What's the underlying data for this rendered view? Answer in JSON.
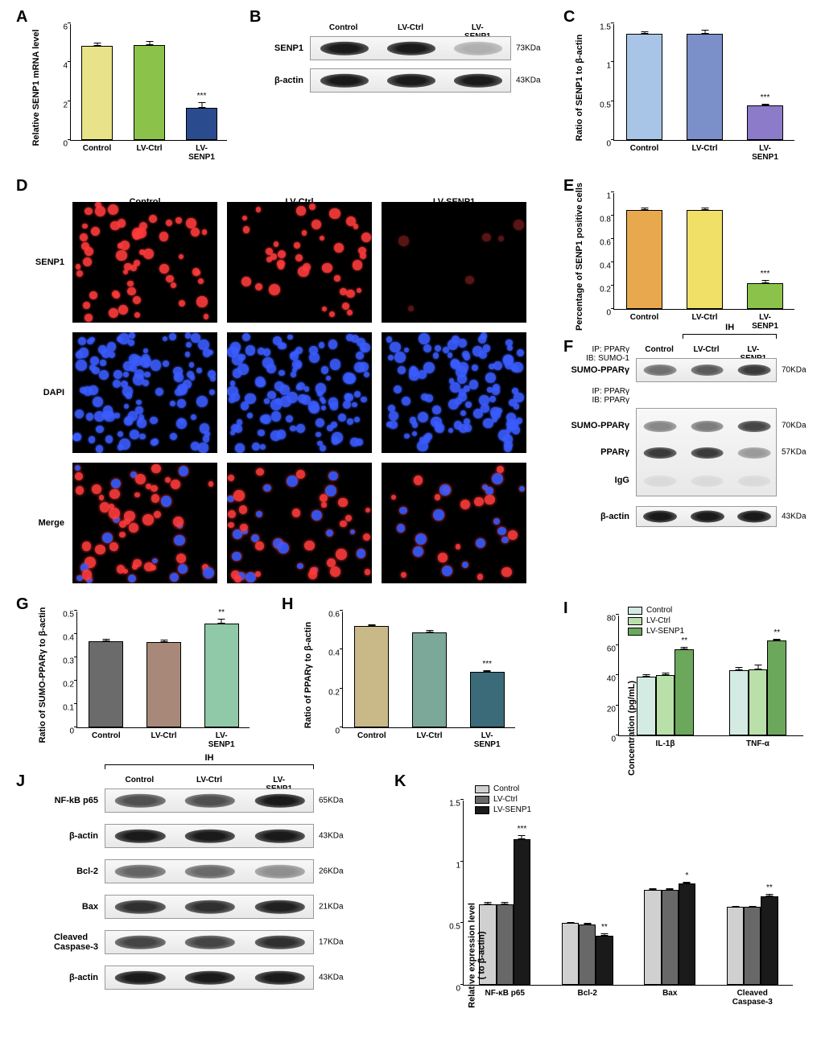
{
  "groups": [
    "Control",
    "LV-Ctrl",
    "LV-SENP1"
  ],
  "panelA": {
    "ylabel": "Relative SENP1 mRNA level",
    "ylim": [
      0,
      6
    ],
    "ytick_step": 2,
    "bars": [
      {
        "label": "Control",
        "value": 4.85,
        "err": 0.15,
        "color": "#e8e388"
      },
      {
        "label": "LV-Ctrl",
        "value": 4.9,
        "err": 0.2,
        "color": "#8bc34a"
      },
      {
        "label": "LV-SENP1",
        "value": 1.65,
        "err": 0.3,
        "color": "#2a4b8d",
        "sig": "***"
      }
    ]
  },
  "panelB": {
    "headers": [
      "Control",
      "LV-Ctrl",
      "LV-SENP1"
    ],
    "rows": [
      {
        "label": "SENP1",
        "kda": "73KDa",
        "intensities": [
          0.95,
          1.0,
          0.25
        ]
      },
      {
        "label": "β-actin",
        "kda": "43KDa",
        "intensities": [
          1.0,
          1.0,
          1.0
        ]
      }
    ]
  },
  "panelC": {
    "ylabel": "Ratio of SENP1 to β-actin",
    "ylim": [
      0,
      1.5
    ],
    "ytick_step": 0.5,
    "bars": [
      {
        "label": "Control",
        "value": 1.37,
        "err": 0.03,
        "color": "#a8c5e8"
      },
      {
        "label": "LV-Ctrl",
        "value": 1.37,
        "err": 0.05,
        "color": "#7b8fc9"
      },
      {
        "label": "LV-SENP1",
        "value": 0.44,
        "err": 0.03,
        "color": "#8b7bc9",
        "sig": "***"
      }
    ]
  },
  "panelD": {
    "row_labels": [
      "SENP1",
      "DAPI",
      "Merge"
    ],
    "col_labels": [
      "Control",
      "LV-Ctrl",
      "LV-SENP1"
    ],
    "densities": [
      [
        1.0,
        0.7,
        0.1
      ],
      [
        1.0,
        1.0,
        1.0
      ],
      [
        1.0,
        0.85,
        0.55
      ]
    ],
    "colors": [
      "#ff3b3b",
      "#3b5cff",
      "#ff3b8f"
    ]
  },
  "panelE": {
    "ylabel": "Percentage of SENP1 positive cells",
    "ylim": [
      0,
      1.0
    ],
    "ytick_step": 0.2,
    "bars": [
      {
        "label": "Control",
        "value": 0.85,
        "err": 0.02,
        "color": "#e8a94e"
      },
      {
        "label": "LV-Ctrl",
        "value": 0.85,
        "err": 0.02,
        "color": "#f0e068"
      },
      {
        "label": "LV-SENP1",
        "value": 0.22,
        "err": 0.03,
        "color": "#8bc34a",
        "sig": "***"
      }
    ]
  },
  "panelF": {
    "ih_label": "IH",
    "headers": [
      "Control",
      "LV-Ctrl",
      "LV-SENP1"
    ],
    "top_labels": [
      "IP: PPARγ",
      "IB: SUMO-1"
    ],
    "mid_labels": [
      "IP: PPARγ",
      "IB: PPARγ"
    ],
    "rows": [
      {
        "label": "SUMO-PPARγ",
        "kda": "70KDa",
        "intensities": [
          0.6,
          0.7,
          0.85
        ],
        "h": 28
      },
      {
        "label": "SUMO-PPARγ",
        "kda": "70KDa",
        "intensities": [
          0.5,
          0.55,
          0.8
        ],
        "h": 0
      },
      {
        "label": "PPARγ",
        "kda": "57KDa",
        "intensities": [
          0.85,
          0.85,
          0.4
        ],
        "h": 0
      },
      {
        "label": "IgG",
        "kda": "",
        "intensities": [
          0.07,
          0.07,
          0.07
        ],
        "h": 0
      },
      {
        "label": "β-actin",
        "kda": "43KDa",
        "intensities": [
          1.0,
          1.0,
          1.0
        ],
        "h": 24
      }
    ]
  },
  "panelG": {
    "ylabel": "Ratio of SUMO-PPARγ to β-actin",
    "ylim": [
      0,
      0.5
    ],
    "ytick_step": 0.1,
    "bars": [
      {
        "label": "Control",
        "value": 0.37,
        "err": 0.01,
        "color": "#6b6b6b"
      },
      {
        "label": "LV-Ctrl",
        "value": 0.365,
        "err": 0.01,
        "color": "#a88878"
      },
      {
        "label": "LV-SENP1",
        "value": 0.445,
        "err": 0.02,
        "color": "#8fc9a8",
        "sig": "**"
      }
    ]
  },
  "panelH": {
    "ylabel": "Ratio of PPARγ to β-actin",
    "ylim": [
      0,
      0.6
    ],
    "ytick_step": 0.2,
    "bars": [
      {
        "label": "Control",
        "value": 0.52,
        "err": 0.01,
        "color": "#c9b888"
      },
      {
        "label": "LV-Ctrl",
        "value": 0.49,
        "err": 0.01,
        "color": "#7ba898"
      },
      {
        "label": "LV-SENP1",
        "value": 0.285,
        "err": 0.01,
        "color": "#3b6b78",
        "sig": "***"
      }
    ]
  },
  "panelI": {
    "ylabel": "Concentration (pg/mL)",
    "ylim": [
      0,
      80
    ],
    "ytick_step": 20,
    "legend": [
      {
        "label": "Control",
        "color": "#d4ebe4"
      },
      {
        "label": "LV-Ctrl",
        "color": "#b8e0a8"
      },
      {
        "label": "LV-SENP1",
        "color": "#6ba85b"
      }
    ],
    "groups": [
      {
        "label": "IL-1β",
        "values": [
          39,
          40,
          57
        ],
        "err": [
          1.5,
          1.8,
          1.5
        ],
        "sig": [
          "",
          "",
          "**"
        ]
      },
      {
        "label": "TNF-α",
        "values": [
          43,
          44,
          63
        ],
        "err": [
          2.5,
          3,
          1
        ],
        "sig": [
          "",
          "",
          "**"
        ]
      }
    ]
  },
  "panelJ": {
    "ih_label": "IH",
    "headers": [
      "Control",
      "LV-Ctrl",
      "LV-SENP1"
    ],
    "rows": [
      {
        "label": "NF-kB p65",
        "kda": "65KDa",
        "intensities": [
          0.7,
          0.7,
          0.95
        ]
      },
      {
        "label": "β-actin",
        "kda": "43KDa",
        "intensities": [
          1.0,
          1.0,
          1.0
        ]
      },
      {
        "label": "Bcl-2",
        "kda": "26KDa",
        "intensities": [
          0.6,
          0.58,
          0.4
        ]
      },
      {
        "label": "Bax",
        "kda": "21KDa",
        "intensities": [
          0.85,
          0.85,
          0.92
        ]
      },
      {
        "label": "Cleaved\nCaspase-3",
        "kda": "17KDa",
        "intensities": [
          0.75,
          0.75,
          0.85
        ]
      },
      {
        "label": "β-actin",
        "kda": "43KDa",
        "intensities": [
          1.0,
          1.0,
          1.0
        ]
      }
    ]
  },
  "panelK": {
    "ylabel": "Relative expression level\n( to β-actin)",
    "ylim": [
      0,
      1.5
    ],
    "ytick_step": 0.5,
    "legend": [
      {
        "label": "Control",
        "color": "#d0d0d0"
      },
      {
        "label": "LV-Ctrl",
        "color": "#686868"
      },
      {
        "label": "LV-SENP1",
        "color": "#1a1a1a"
      }
    ],
    "groups": [
      {
        "label": "NF-κB p65",
        "values": [
          0.65,
          0.65,
          1.18
        ],
        "err": [
          0.02,
          0.02,
          0.03
        ],
        "sig": [
          "",
          "",
          "***"
        ]
      },
      {
        "label": "Bcl-2",
        "values": [
          0.5,
          0.49,
          0.4
        ],
        "err": [
          0.01,
          0.01,
          0.015
        ],
        "sig": [
          "",
          "",
          "**"
        ]
      },
      {
        "label": "Bax",
        "values": [
          0.77,
          0.77,
          0.82
        ],
        "err": [
          0.01,
          0.01,
          0.015
        ],
        "sig": [
          "",
          "",
          "*"
        ]
      },
      {
        "label": "Cleaved\nCaspase-3",
        "values": [
          0.63,
          0.63,
          0.72
        ],
        "err": [
          0.01,
          0.01,
          0.015
        ],
        "sig": [
          "",
          "",
          "**"
        ]
      }
    ]
  }
}
